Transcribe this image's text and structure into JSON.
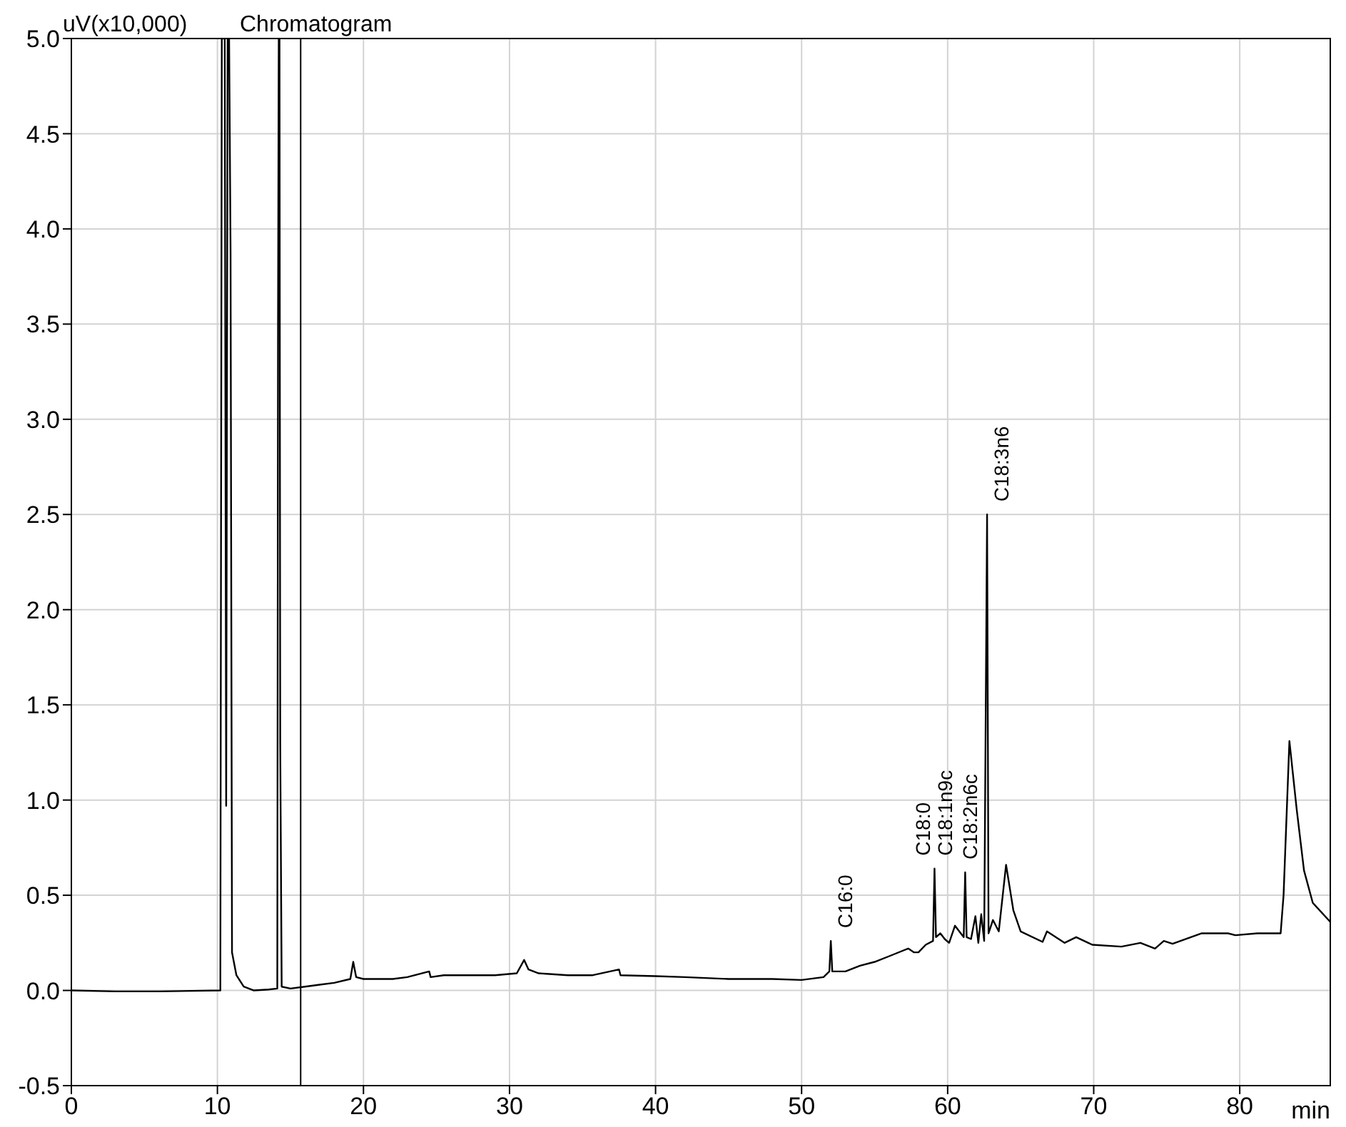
{
  "chart_data": {
    "type": "line",
    "ylabel": "uV(x10,000)",
    "xlabel": "min",
    "xlim": [
      0,
      86.2
    ],
    "xticks": [
      0,
      10,
      20,
      30,
      40,
      50,
      60,
      70,
      80
    ],
    "ylim": [
      -0.5,
      5.0
    ],
    "yticks": [
      {
        "value": -0.5,
        "label": "-0.5"
      },
      {
        "value": 0,
        "label": "0.0"
      },
      {
        "value": 0.5,
        "label": "0.5"
      },
      {
        "value": 1,
        "label": "1.0"
      },
      {
        "value": 1.5,
        "label": "1.5"
      },
      {
        "value": 2,
        "label": "2.0"
      },
      {
        "value": 2.5,
        "label": "2.5"
      },
      {
        "value": 3,
        "label": "3.0"
      },
      {
        "value": 3.5,
        "label": "3.5"
      },
      {
        "value": 4,
        "label": "4.0"
      },
      {
        "value": 4.5,
        "label": "4.5"
      },
      {
        "value": 5,
        "label": "5.0"
      }
    ],
    "grid": true,
    "legend": "top left",
    "marker": "none",
    "line_style": "solid",
    "series": [
      {
        "name": "Chromatogram",
        "color": "#000000",
        "x": [
          0,
          3,
          6,
          10.2,
          10.3,
          10.5,
          10.6,
          10.7,
          10.8,
          10.9,
          11.0,
          11.3,
          11.8,
          12.5,
          13.5,
          14.1,
          14.15,
          14.2,
          14.25,
          14.3,
          14.4,
          15,
          16,
          17,
          18,
          19.1,
          19.3,
          19.5,
          20,
          22,
          23,
          24.5,
          24.6,
          25.5,
          27,
          29,
          30.5,
          31,
          31.3,
          32,
          34,
          35.7,
          37.5,
          37.6,
          40,
          42,
          45,
          48,
          50,
          51.5,
          51.9,
          52.0,
          52.1,
          53,
          54,
          55,
          56,
          57.3,
          57.7,
          58,
          58.5,
          59.0,
          59.1,
          59.2,
          59.5,
          59.8,
          60.1,
          60.5,
          60.9,
          61.1,
          61.2,
          61.3,
          61.6,
          61.9,
          62.1,
          62.3,
          62.5,
          62.7,
          62.8,
          63.1,
          63.5,
          64.0,
          64.5,
          65.0,
          66.5,
          66.8,
          67.4,
          68.0,
          68.8,
          69.9,
          71.9,
          73.2,
          74.2,
          74.8,
          75.4,
          77.4,
          79.2,
          79.7,
          81.2,
          82.8,
          83.0,
          83.4,
          83.9,
          84.4,
          85.0,
          86.2
        ],
        "values": [
          0,
          -0.005,
          -0.005,
          0,
          5.0,
          5.0,
          0.97,
          5.0,
          5.0,
          3.88,
          0.2,
          0.08,
          0.02,
          0,
          0.005,
          0.01,
          3.5,
          5.0,
          5.0,
          1.3,
          0.02,
          0.01,
          0.02,
          0.03,
          0.04,
          0.06,
          0.15,
          0.07,
          0.06,
          0.06,
          0.07,
          0.1,
          0.07,
          0.08,
          0.08,
          0.08,
          0.09,
          0.16,
          0.11,
          0.09,
          0.08,
          0.08,
          0.11,
          0.08,
          0.075,
          0.07,
          0.06,
          0.06,
          0.055,
          0.07,
          0.1,
          0.26,
          0.1,
          0.1,
          0.13,
          0.15,
          0.18,
          0.22,
          0.2,
          0.2,
          0.24,
          0.26,
          0.64,
          0.28,
          0.3,
          0.27,
          0.25,
          0.34,
          0.3,
          0.28,
          0.62,
          0.28,
          0.27,
          0.39,
          0.25,
          0.4,
          0.26,
          2.5,
          0.3,
          0.37,
          0.31,
          0.66,
          0.42,
          0.31,
          0.255,
          0.31,
          0.28,
          0.25,
          0.28,
          0.24,
          0.23,
          0.25,
          0.22,
          0.26,
          0.245,
          0.3,
          0.3,
          0.29,
          0.3,
          0.3,
          0.5,
          1.31,
          0.95,
          0.63,
          0.46,
          0.36
        ]
      }
    ],
    "ref_lines": [
      {
        "axis": "x",
        "value": 15.7,
        "color": "#000000"
      }
    ],
    "annotations": [
      {
        "text": "C16:0",
        "x": 52.0,
        "y": 0.26
      },
      {
        "text": "C18:0",
        "x": 59.1,
        "y": 0.64
      },
      {
        "text": "C18:1n9c",
        "x": 61.2,
        "y": 0.62
      },
      {
        "text": "C18:2n6c",
        "x": 62.3,
        "y": 0.4
      },
      {
        "text": "C18:3n6",
        "x": 62.7,
        "y": 2.5
      }
    ]
  }
}
